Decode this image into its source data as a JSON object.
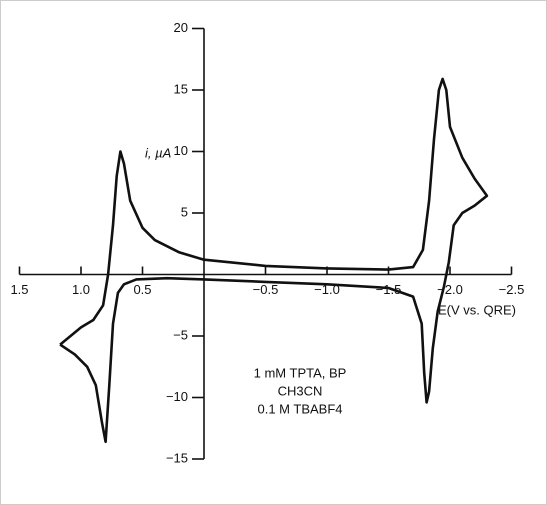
{
  "chart_data": {
    "type": "line",
    "y_label": "i, µA",
    "x_label": "E(V vs. QRE)",
    "annotation": [
      "1 mM TPTA, BP",
      "CH3CN",
      "0.1 M TBABF4"
    ],
    "xlim": [
      1.5,
      -2.5
    ],
    "ylim": [
      -15,
      20
    ],
    "xticks": [
      {
        "value": 1.5,
        "label": "1.5"
      },
      {
        "value": 1,
        "label": "1.0"
      },
      {
        "value": 0.5,
        "label": "0.5"
      },
      {
        "value": -0.5,
        "label": "−0.5"
      },
      {
        "value": -1,
        "label": "−1.0"
      },
      {
        "value": -1.5,
        "label": "−1.5"
      },
      {
        "value": -2,
        "label": "−2.0"
      },
      {
        "value": -2.5,
        "label": "−2.5"
      }
    ],
    "yticks": [
      {
        "value": -15,
        "label": "−15"
      },
      {
        "value": -10,
        "label": "−10"
      },
      {
        "value": -5,
        "label": "−5"
      },
      5,
      10,
      15,
      20
    ],
    "color": "#111111",
    "x": [
      1.17,
      1.0,
      0.9,
      0.82,
      0.78,
      0.74,
      0.71,
      0.68,
      0.65,
      0.6,
      0.5,
      0.4,
      0.2,
      0,
      -0.5,
      -1.0,
      -1.5,
      -1.7,
      -1.78,
      -1.83,
      -1.87,
      -1.91,
      -1.94,
      -1.97,
      -2.0,
      -2.1,
      -2.2,
      -2.3,
      -2.2,
      -2.1,
      -2.03,
      -1.99,
      -1.95,
      -1.9,
      -1.86,
      -1.83,
      -1.81,
      -1.79,
      -1.77,
      -1.7,
      -1.5,
      -1.0,
      -0.5,
      0,
      0.3,
      0.55,
      0.65,
      0.7,
      0.74,
      0.77,
      0.8,
      0.83,
      0.88,
      0.95,
      1.05,
      1.17
    ],
    "values": [
      -5.7,
      -4.3,
      -3.7,
      -2.5,
      0,
      4,
      8,
      10,
      9,
      6,
      3.8,
      2.8,
      1.8,
      1.2,
      0.7,
      0.5,
      0.4,
      0.6,
      2,
      6,
      11,
      15,
      15.9,
      15,
      12,
      9.5,
      7.8,
      6.4,
      5.6,
      5,
      4,
      1,
      -1,
      -3,
      -6,
      -9.5,
      -10.4,
      -8,
      -4,
      -1.8,
      -1.1,
      -0.8,
      -0.6,
      -0.4,
      -0.3,
      -0.4,
      -0.8,
      -1.5,
      -4,
      -9,
      -13.6,
      -12,
      -9,
      -7.5,
      -6.5,
      -5.7
    ]
  }
}
